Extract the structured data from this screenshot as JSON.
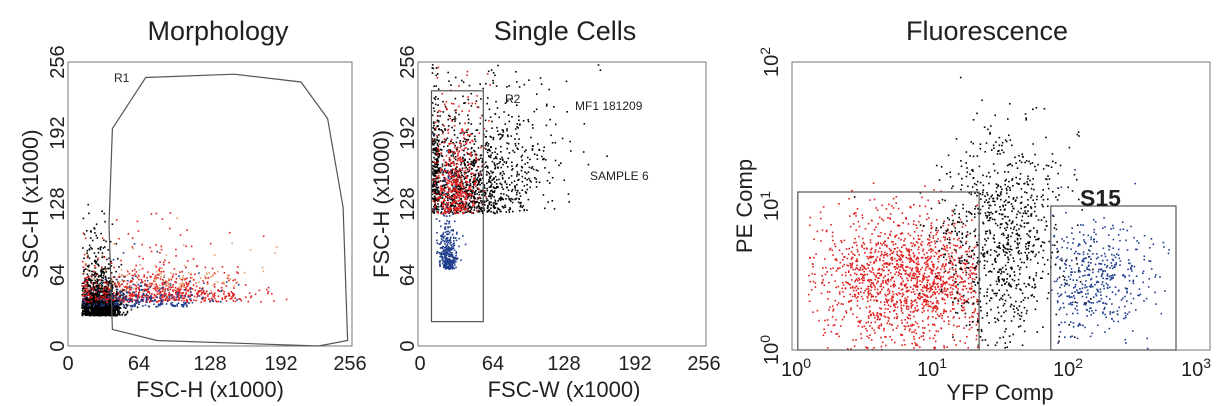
{
  "chart_data": [
    {
      "type": "scatter",
      "title": "Morphology",
      "xlabel": "FSC-H (x1000)",
      "ylabel": "SSC-H (x1000)",
      "xlim": [
        0,
        256
      ],
      "ylim": [
        0,
        256
      ],
      "xticks": [
        "0",
        "64",
        "128",
        "192",
        "256"
      ],
      "yticks": [
        "0",
        "64",
        "128",
        "192",
        "256"
      ],
      "gates": [
        {
          "name": "R1",
          "shape": "polygon",
          "vertices": [
            [
              40,
              15
            ],
            [
              37,
              110
            ],
            [
              40,
              196
            ],
            [
              70,
              242
            ],
            [
              150,
              245
            ],
            [
              210,
              238
            ],
            [
              234,
              205
            ],
            [
              248,
              125
            ],
            [
              252,
              5
            ],
            [
              226,
              0
            ],
            [
              80,
              5
            ]
          ]
        }
      ],
      "series": [
        {
          "color": "#000000",
          "density": "dense cluster near origin with sparse cloud",
          "center": [
            28,
            28
          ],
          "spread": [
            10,
            22
          ],
          "count": 1600
        },
        {
          "color": "#e01e1e",
          "center": [
            80,
            40
          ],
          "spread": [
            40,
            22
          ],
          "count": 700
        },
        {
          "color": "#1f3d8c",
          "center": [
            70,
            36
          ],
          "spread": [
            30,
            14
          ],
          "count": 250
        },
        {
          "color": "#e6a06a",
          "center": [
            85,
            50
          ],
          "spread": [
            40,
            22
          ],
          "count": 120
        }
      ]
    },
    {
      "type": "scatter",
      "title": "Single Cells",
      "xlabel": "FSC-W (x1000)",
      "ylabel": "FSC-H (x1000)",
      "xlim": [
        0,
        256
      ],
      "ylim": [
        0,
        256
      ],
      "xticks": [
        "0",
        "64",
        "128",
        "192",
        "256"
      ],
      "yticks": [
        "0",
        "64",
        "128",
        "192",
        "256"
      ],
      "annotations": [
        "MF1 181209",
        "SAMPLE 6"
      ],
      "gates": [
        {
          "name": "R2",
          "shape": "rectangle",
          "x": [
            12,
            58
          ],
          "y": [
            22,
            230
          ]
        }
      ],
      "series": [
        {
          "color": "#000000",
          "center": [
            45,
            120
          ],
          "spread": [
            25,
            70
          ],
          "count": 1400
        },
        {
          "color": "#e01e1e",
          "center": [
            32,
            120
          ],
          "spread": [
            8,
            60
          ],
          "count": 500
        },
        {
          "color": "#1f3d8c",
          "center": [
            26,
            70
          ],
          "spread": [
            5,
            30
          ],
          "count": 350
        }
      ]
    },
    {
      "type": "scatter",
      "title": "Fluorescence",
      "xlabel": "YFP Comp",
      "ylabel": "PE Comp",
      "xscale": "log",
      "yscale": "log",
      "xlim": [
        1,
        1000
      ],
      "ylim": [
        1,
        100
      ],
      "xticks": [
        {
          "base": "10",
          "exp": "0"
        },
        {
          "base": "10",
          "exp": "1"
        },
        {
          "base": "10",
          "exp": "2"
        },
        {
          "base": "10",
          "exp": "3"
        }
      ],
      "yticks": [
        {
          "base": "10",
          "exp": "0"
        },
        {
          "base": "10",
          "exp": "1"
        },
        {
          "base": "10",
          "exp": "2"
        }
      ],
      "gates": [
        {
          "shape": "rectangle",
          "x": [
            1.1,
            22
          ],
          "y": [
            1,
            12.5
          ]
        },
        {
          "name": "S15",
          "shape": "rectangle",
          "x": [
            72,
            570
          ],
          "y": [
            1,
            10
          ]
        }
      ],
      "series": [
        {
          "color": "#e01e1e",
          "center_log": [
            0.85,
            0.5
          ],
          "spread_log": [
            0.35,
            0.22
          ],
          "xrange": [
            1.3,
            22
          ],
          "count": 1700
        },
        {
          "color": "#000000",
          "center_log": [
            1.5,
            0.8
          ],
          "spread_log": [
            0.22,
            0.35
          ],
          "count": 900
        },
        {
          "color": "#1f3d8c",
          "center_log": [
            2.15,
            0.5
          ],
          "spread_log": [
            0.22,
            0.2
          ],
          "xrange": [
            72,
            570
          ],
          "count": 500
        }
      ]
    }
  ]
}
